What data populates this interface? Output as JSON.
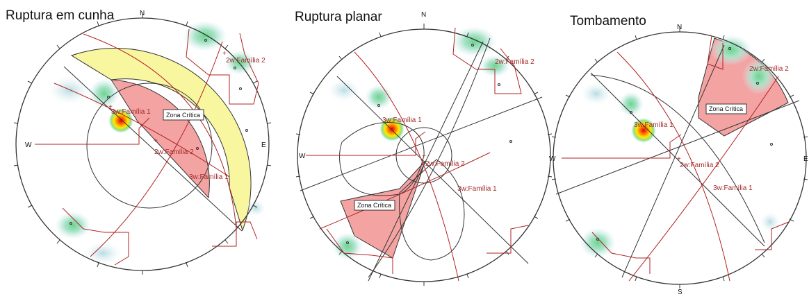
{
  "compass": {
    "north": "N",
    "south": "S",
    "east": "E",
    "west": "W"
  },
  "panels": [
    {
      "title": "Ruptura em cunha",
      "zone_label": "Zona Crítica",
      "set_labels": [
        "3w:Família 1",
        "2w:Família 2",
        "3w:Família 1",
        "2w:Família 2"
      ]
    },
    {
      "title": "Ruptura planar",
      "zone_label": "Zona Crítica",
      "set_labels": [
        "3w:Família 1",
        "2w:Família 2",
        "3w:Família 1",
        "2w:Família 2"
      ]
    },
    {
      "title": "Tombamento",
      "zone_label": "Zona Crítica",
      "set_labels": [
        "3w:Família 1",
        "2w:Família 2",
        "3w:Família 1",
        "2w:Família 2"
      ]
    }
  ],
  "colors": {
    "critical_zone": "#f4a3a3",
    "friction_band": "#f9f6a0",
    "planes": "#b22222",
    "grid_lines": "#333333",
    "pole_hot": "#e3001b",
    "pole_contour": "#7fd6a0"
  }
}
